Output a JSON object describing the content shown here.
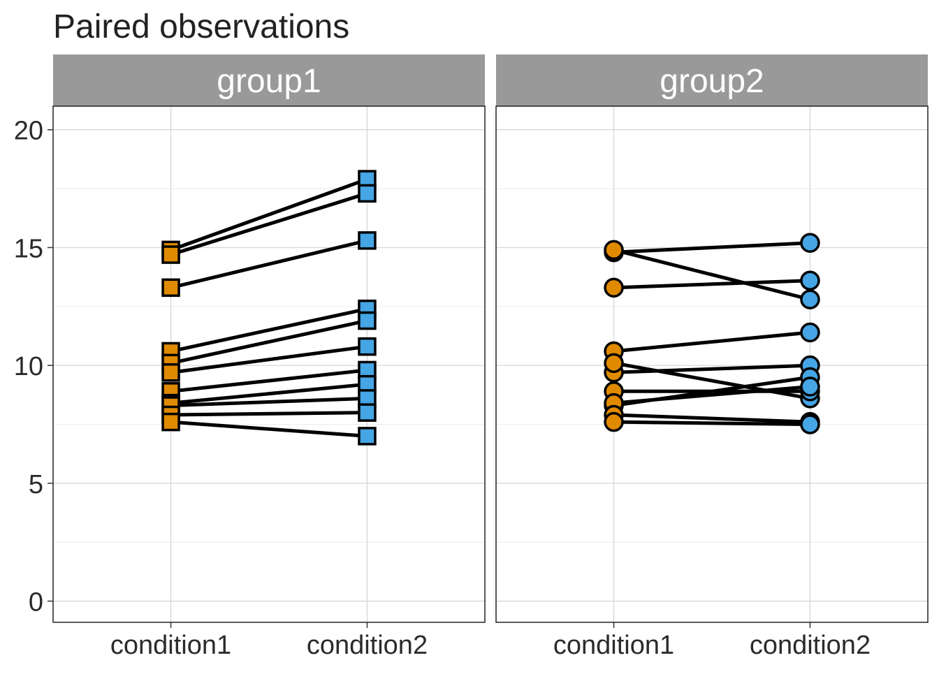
{
  "chart_data": {
    "type": "line",
    "title": "Paired observations",
    "xlabel": "",
    "ylabel": "",
    "ylim": [
      -0.9,
      21
    ],
    "yticks": [
      0,
      5,
      10,
      15,
      20
    ],
    "categories": [
      "condition1",
      "condition2"
    ],
    "grid": true,
    "colors": {
      "condition1": "#E08A00",
      "condition2": "#45A5E5",
      "line": "#000000",
      "strip": "#999999",
      "strip_text": "#ffffff"
    },
    "panels": [
      {
        "label": "group1",
        "marker": "square",
        "pairs": [
          [
            14.9,
            17.9
          ],
          [
            14.7,
            17.3
          ],
          [
            13.3,
            15.3
          ],
          [
            10.6,
            12.4
          ],
          [
            10.1,
            11.9
          ],
          [
            9.7,
            10.8
          ],
          [
            8.9,
            9.8
          ],
          [
            8.4,
            9.2
          ],
          [
            8.3,
            8.6
          ],
          [
            7.9,
            8.0
          ],
          [
            7.6,
            7.0
          ]
        ]
      },
      {
        "label": "group2",
        "marker": "circle",
        "pairs": [
          [
            14.8,
            15.2
          ],
          [
            14.9,
            12.8
          ],
          [
            13.3,
            13.6
          ],
          [
            10.6,
            11.4
          ],
          [
            9.7,
            10.0
          ],
          [
            10.1,
            8.6
          ],
          [
            8.9,
            8.9
          ],
          [
            8.3,
            9.5
          ],
          [
            8.4,
            9.1
          ],
          [
            7.9,
            7.6
          ],
          [
            7.6,
            7.5
          ]
        ]
      }
    ]
  }
}
